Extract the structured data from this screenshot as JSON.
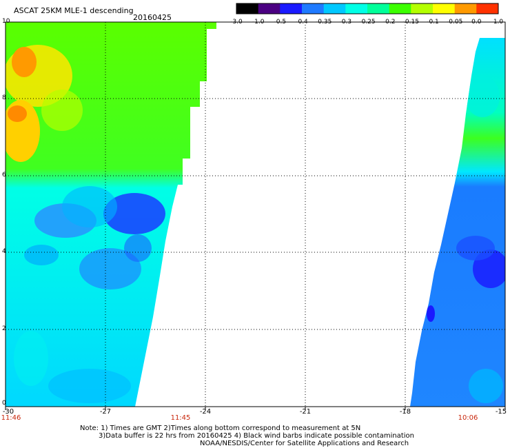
{
  "header": {
    "title": "ASCAT 25KM MLE-1 descending",
    "date": "20160425"
  },
  "colorbar": {
    "labels": [
      "-3.0",
      "-1.0",
      "-0.5",
      "-0.4",
      "-0.35",
      "-0.3",
      "-0.25",
      "-0.2",
      "-0.15",
      "-0.1",
      "-0.05",
      "0.0",
      "1.0"
    ],
    "colors": [
      "#000000",
      "#4b0082",
      "#1a1aff",
      "#1f7aff",
      "#00c8ff",
      "#00ffe6",
      "#00ff9a",
      "#3cff00",
      "#b4ff00",
      "#ffff00",
      "#ff9a00",
      "#ff3200",
      "#ff0000"
    ]
  },
  "axes": {
    "y_ticks": [
      "10",
      "8",
      "6",
      "4",
      "2",
      "0"
    ],
    "x_ticks": [
      "-30",
      "-27",
      "-24",
      "-21",
      "-18",
      "-15"
    ],
    "times": [
      "11:46",
      "11:45",
      "10:06"
    ]
  },
  "notes": {
    "line1": "Note: 1) Times are GMT 2)Times along bottom correspond to measurement at 5N",
    "line2": "3)Data buffer is 22 hrs from 20160425 4) Black wind barbs indicate possible contamination",
    "line3": "NOAA/NESDIS/Center for Satellite Applications and Research"
  }
}
